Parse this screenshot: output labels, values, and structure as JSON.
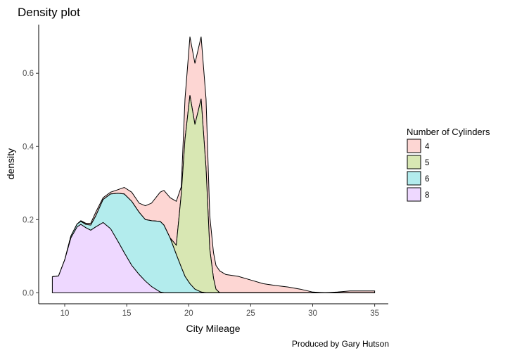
{
  "chart_data": {
    "type": "area",
    "subtype": "stacked density",
    "title": "Density plot",
    "xlabel": "City Mileage",
    "ylabel": "density",
    "caption": "Produced by Gary Hutson",
    "xlim": [
      7.9,
      36.1
    ],
    "ylim": [
      -0.03,
      0.733
    ],
    "xticks": [
      10,
      15,
      20,
      25,
      30,
      35
    ],
    "xtick_labels": [
      "10",
      "15",
      "20",
      "25",
      "30",
      "35"
    ],
    "yticks": [
      0,
      0.2,
      0.4,
      0.6
    ],
    "ytick_labels": [
      "0.0",
      "0.2",
      "0.4",
      "0.6"
    ],
    "grid": false,
    "legend": {
      "title": "Number of Cylinders",
      "position": "right"
    },
    "x": [
      9,
      9.5,
      10,
      10.5,
      11,
      11.3,
      11.7,
      12.1,
      12.5,
      13.1,
      13.7,
      14.3,
      14.8,
      15.4,
      16,
      16.5,
      17,
      17.7,
      18,
      18.5,
      19,
      19.4,
      19.7,
      20.1,
      20.5,
      21,
      21.4,
      21.7,
      22,
      22.2,
      22.5,
      23,
      24,
      25,
      26,
      27,
      28,
      29,
      30,
      31,
      32,
      33,
      34,
      35
    ],
    "series": [
      {
        "name": "4",
        "color": "#F8766D",
        "values": [
          0,
          0,
          0,
          0,
          0,
          0.002,
          0.003,
          0.005,
          0.01,
          0.005,
          0.005,
          0.01,
          0.018,
          0.025,
          0.025,
          0.038,
          0.048,
          0.08,
          0.095,
          0.11,
          0.12,
          0.02,
          0.11,
          0.16,
          0.167,
          0.17,
          0.19,
          0.09,
          0.07,
          0.065,
          0.06,
          0.05,
          0.045,
          0.035,
          0.025,
          0.02,
          0.016,
          0.01,
          0.002,
          0,
          0.002,
          0.005,
          0.005,
          0.005
        ]
      },
      {
        "name": "5",
        "color": "#7CAE00",
        "values": [
          0,
          0,
          0,
          0,
          0,
          0,
          0,
          0,
          0,
          0,
          0,
          0,
          0,
          0,
          0,
          0,
          0,
          0,
          0,
          0,
          0.025,
          0.2,
          0.375,
          0.515,
          0.45,
          0.528,
          0.34,
          0.12,
          0.04,
          0.01,
          0,
          0,
          0,
          0,
          0,
          0,
          0,
          0,
          0,
          0,
          0,
          0,
          0,
          0
        ]
      },
      {
        "name": "6",
        "color": "#00BFC4",
        "values": [
          0,
          0,
          0,
          0.005,
          0.008,
          0.008,
          0.009,
          0.014,
          0.03,
          0.063,
          0.095,
          0.132,
          0.16,
          0.175,
          0.17,
          0.168,
          0.18,
          0.193,
          0.185,
          0.15,
          0.105,
          0.07,
          0.045,
          0.025,
          0.01,
          0.002,
          0,
          0,
          0,
          0,
          0,
          0,
          0,
          0,
          0,
          0,
          0,
          0,
          0,
          0,
          0,
          0,
          0,
          0
        ]
      },
      {
        "name": "8",
        "color": "#C77CFF",
        "values": [
          0.044,
          0.046,
          0.09,
          0.15,
          0.18,
          0.187,
          0.178,
          0.171,
          0.18,
          0.192,
          0.175,
          0.14,
          0.11,
          0.075,
          0.05,
          0.032,
          0.017,
          0.002,
          0,
          0,
          0,
          0,
          0,
          0,
          0,
          0,
          0,
          0,
          0,
          0,
          0,
          0,
          0,
          0,
          0,
          0,
          0,
          0,
          0,
          0,
          0,
          0,
          0,
          0
        ]
      }
    ]
  }
}
